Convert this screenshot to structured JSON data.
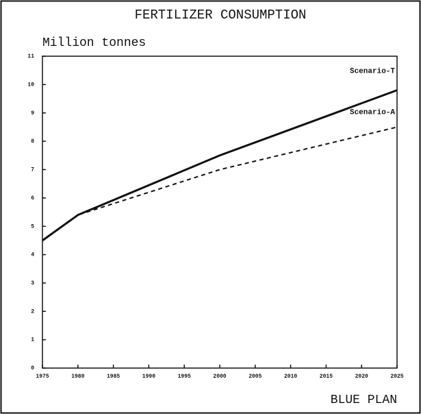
{
  "chart_data": {
    "type": "line",
    "title": "FERTILIZER CONSUMPTION",
    "y_label": "Million tonnes",
    "source": "BLUE PLAN",
    "x": [
      1975,
      1980,
      2000,
      2025
    ],
    "series": [
      {
        "name": "Scenario-T",
        "color": "#111111",
        "dashed": false,
        "values": [
          4.5,
          5.4,
          7.5,
          9.8
        ]
      },
      {
        "name": "Scenario-A",
        "color": "#111111",
        "dashed": true,
        "values": [
          4.5,
          5.4,
          7.0,
          8.5
        ]
      }
    ],
    "xlim": [
      1975,
      2025
    ],
    "xticks": [
      1975,
      1980,
      1985,
      1990,
      1995,
      2000,
      2005,
      2010,
      2015,
      2020,
      2025
    ],
    "ylim": [
      0,
      11
    ],
    "yticks": [
      0,
      1,
      2,
      3,
      4,
      5,
      6,
      7,
      8,
      9,
      10,
      11
    ]
  }
}
